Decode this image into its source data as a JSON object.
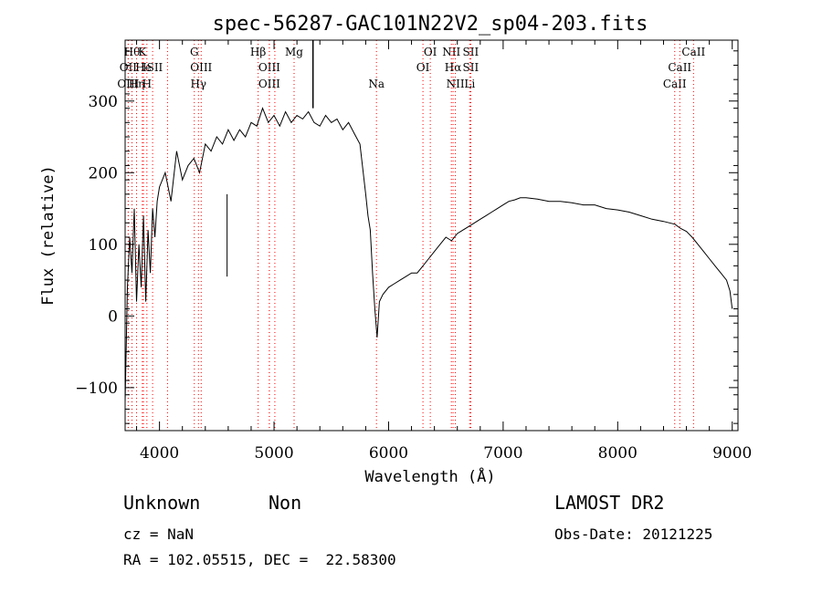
{
  "chart_data": {
    "type": "line",
    "title": "spec-56287-GAC101N22V2_sp04-203.fits",
    "xlabel": "Wavelength (Å)",
    "ylabel": "Flux (relative)",
    "xlim": [
      3700,
      9050
    ],
    "ylim": [
      -160,
      385
    ],
    "xticks": [
      4000,
      5000,
      6000,
      7000,
      8000,
      9000
    ],
    "yticks": [
      -100,
      0,
      100,
      200,
      300
    ],
    "grid": false,
    "line_color": "#000000",
    "marker_color": "#ff0000",
    "series": [
      {
        "x": [
          3700,
          3720,
          3740,
          3760,
          3780,
          3800,
          3820,
          3840,
          3860,
          3880,
          3900,
          3920,
          3940,
          3960,
          3980,
          4000,
          4050,
          4100,
          4150,
          4200,
          4250,
          4300,
          4350,
          4400,
          4450,
          4500,
          4550,
          4600,
          4650,
          4700,
          4750,
          4800,
          4850,
          4900,
          4950,
          5000,
          5050,
          5100,
          5150,
          5200,
          5250,
          5300,
          5350,
          5400,
          5450,
          5500,
          5550,
          5600,
          5650,
          5700,
          5750,
          5800,
          5820,
          5840,
          5860,
          5880,
          5900,
          5920,
          5950,
          6000,
          6050,
          6100,
          6150,
          6200,
          6250,
          6300,
          6350,
          6400,
          6450,
          6500,
          6550,
          6600,
          6650,
          6700,
          6750,
          6800,
          6850,
          6900,
          6950,
          7000,
          7050,
          7100,
          7150,
          7200,
          7300,
          7400,
          7500,
          7600,
          7700,
          7800,
          7900,
          8000,
          8100,
          8200,
          8300,
          8400,
          8500,
          8550,
          8600,
          8650,
          8700,
          8750,
          8800,
          8850,
          8900,
          8950,
          8980,
          9000
        ],
        "y": [
          -120,
          40,
          110,
          60,
          150,
          20,
          100,
          40,
          140,
          20,
          120,
          60,
          150,
          110,
          160,
          180,
          200,
          160,
          230,
          190,
          210,
          220,
          200,
          240,
          230,
          250,
          240,
          260,
          245,
          260,
          250,
          270,
          265,
          290,
          270,
          280,
          265,
          285,
          270,
          280,
          275,
          285,
          270,
          265,
          280,
          270,
          275,
          260,
          270,
          255,
          240,
          170,
          140,
          120,
          60,
          10,
          -30,
          20,
          30,
          40,
          45,
          50,
          55,
          60,
          60,
          70,
          80,
          90,
          100,
          110,
          105,
          115,
          120,
          125,
          130,
          135,
          140,
          145,
          150,
          155,
          160,
          162,
          165,
          165,
          163,
          160,
          160,
          158,
          155,
          155,
          150,
          148,
          145,
          140,
          135,
          132,
          128,
          122,
          118,
          110,
          100,
          90,
          80,
          70,
          60,
          50,
          35,
          10
        ]
      }
    ],
    "spike": {
      "x": 5340,
      "y_top": 385,
      "y_bottom": 290
    },
    "dip": {
      "x": 4590,
      "y_top": 170,
      "y_bottom": 55
    },
    "lines": [
      {
        "wl": 3727,
        "label": "OII",
        "row": 1
      },
      {
        "wl": 3727,
        "label": "OIII",
        "row": 2
      },
      {
        "wl": 3760,
        "label": "Hθ",
        "row": 0
      },
      {
        "wl": 3800,
        "label": "Hη",
        "row": 2
      },
      {
        "wl": 3850,
        "label": "K",
        "row": 0
      },
      {
        "wl": 3860,
        "label": "He",
        "row": 1
      },
      {
        "wl": 3890,
        "label": "H",
        "row": 2
      },
      {
        "wl": 3940,
        "label": "ISII",
        "row": 1
      },
      {
        "wl": 4070,
        "label": "",
        "row": -1
      },
      {
        "wl": 4304,
        "label": "G",
        "row": 0
      },
      {
        "wl": 4340,
        "label": "Hγ",
        "row": 2
      },
      {
        "wl": 4364,
        "label": "OIII",
        "row": 1
      },
      {
        "wl": 4861,
        "label": "Hβ",
        "row": 0
      },
      {
        "wl": 4959,
        "label": "OIII",
        "row": 1
      },
      {
        "wl": 4959,
        "label": "OIII",
        "row": 2
      },
      {
        "wl": 5007,
        "label": "",
        "row": -1
      },
      {
        "wl": 5175,
        "label": "Mg",
        "row": 0
      },
      {
        "wl": 5894,
        "label": "Na",
        "row": 2
      },
      {
        "wl": 6300,
        "label": "OI",
        "row": 1
      },
      {
        "wl": 6364,
        "label": "OI",
        "row": 0
      },
      {
        "wl": 6548,
        "label": "NII",
        "row": 0
      },
      {
        "wl": 6563,
        "label": "Hα",
        "row": 1
      },
      {
        "wl": 6583,
        "label": "NII",
        "row": 2
      },
      {
        "wl": 6717,
        "label": "SII",
        "row": 0
      },
      {
        "wl": 6717,
        "label": "SII",
        "row": 1
      },
      {
        "wl": 6708,
        "label": "Li",
        "row": 2
      },
      {
        "wl": 8498,
        "label": "CaII",
        "row": 2
      },
      {
        "wl": 8542,
        "label": "CaII",
        "row": 1
      },
      {
        "wl": 8662,
        "label": "CaII",
        "row": 0
      }
    ]
  },
  "info": {
    "class_text": "Unknown",
    "subclass_text": "Non",
    "cz_text": "cz = NaN",
    "radec_text": "RA = 102.05515, DEC =  22.58300",
    "survey_text": "LAMOST DR2",
    "obsdate_text": "Obs-Date: 20121225"
  }
}
